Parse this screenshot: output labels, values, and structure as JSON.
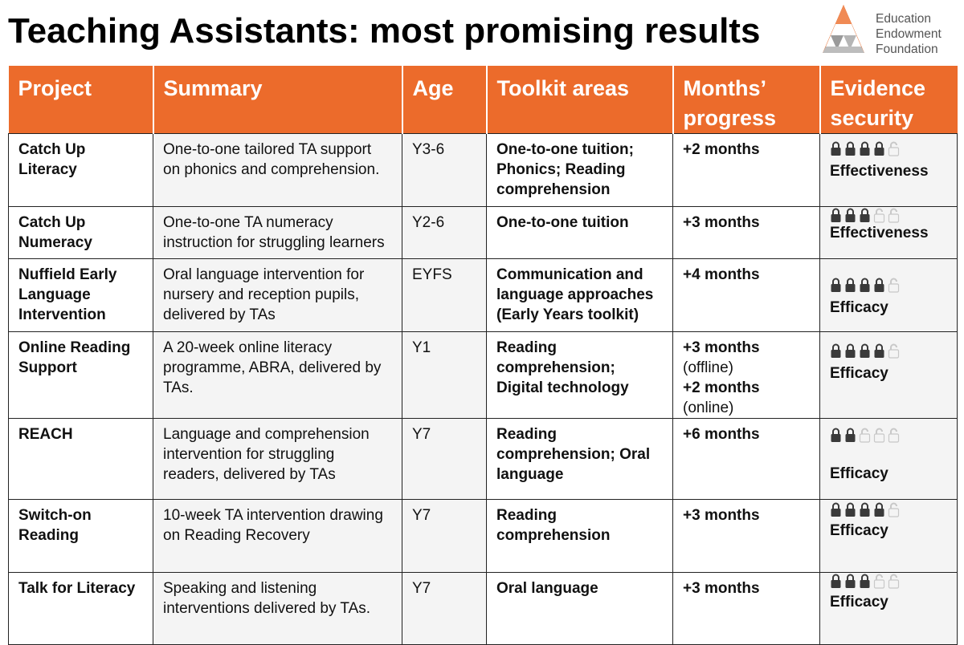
{
  "title": "Teaching Assistants: most promising results",
  "logo": {
    "line1": "Education",
    "line2": "Endowment",
    "line3": "Foundation",
    "accent": "#e46b2c"
  },
  "columns": [
    "Project",
    "Summary",
    "Age",
    "Toolkit areas",
    "Months’ progress",
    "Evidence security"
  ],
  "rows": [
    {
      "project": "Catch Up Literacy",
      "summary": "One-to-one tailored TA support on phonics and comprehension.",
      "age": "Y3-6",
      "toolkit": "One-to-one tuition; Phonics; Reading comprehension",
      "progress": "+2 months",
      "progress2": "",
      "locks": 4,
      "evidence": "Effectiveness"
    },
    {
      "project": "Catch Up Numeracy",
      "summary": "One-to-one TA numeracy instruction for struggling learners",
      "age": "Y2-6",
      "toolkit": "One-to-one tuition",
      "progress": "+3 months",
      "progress2": "",
      "locks": 3,
      "evidence": "Effectiveness"
    },
    {
      "project": "Nuffield Early Language Intervention",
      "summary": "Oral language intervention for nursery and reception pupils, delivered by TAs",
      "age": "EYFS",
      "toolkit": "Communication and language approaches (Early Years toolkit)",
      "progress": "+4 months",
      "progress2": "",
      "locks": 4,
      "evidence": "Efficacy"
    },
    {
      "project": "Online Reading Support",
      "summary": "A 20-week online literacy programme, ABRA, delivered by TAs.",
      "age": "Y1",
      "toolkit": "Reading comprehension; Digital technology",
      "progress": "+3 months",
      "progress_note": "(offline)",
      "progress2": "+2 months",
      "progress2_note": "(online)",
      "locks": 4,
      "evidence": "Efficacy"
    },
    {
      "project": "REACH",
      "summary": "Language and comprehension intervention for struggling readers, delivered by TAs",
      "age": "Y7",
      "toolkit": "Reading comprehension; Oral language",
      "progress": "+6 months",
      "progress2": "",
      "locks": 2,
      "evidence": "Efficacy"
    },
    {
      "project": "Switch-on Reading",
      "summary": "10-week TA intervention drawing on Reading Recovery",
      "age": "Y7",
      "toolkit": "Reading comprehension",
      "progress": "+3 months",
      "progress2": "",
      "locks": 4,
      "evidence": "Efficacy"
    },
    {
      "project": "Talk for Literacy",
      "summary": "Speaking and listening interventions delivered by TAs.",
      "age": "Y7",
      "toolkit": "Oral language",
      "progress": "+3 months",
      "progress2": "",
      "locks": 3,
      "evidence": "Efficacy"
    }
  ],
  "lock_total": 5,
  "colors": {
    "header": "#ec6b2b",
    "lock_on": "#3a3a3a",
    "lock_off": "#c8c8c8"
  }
}
